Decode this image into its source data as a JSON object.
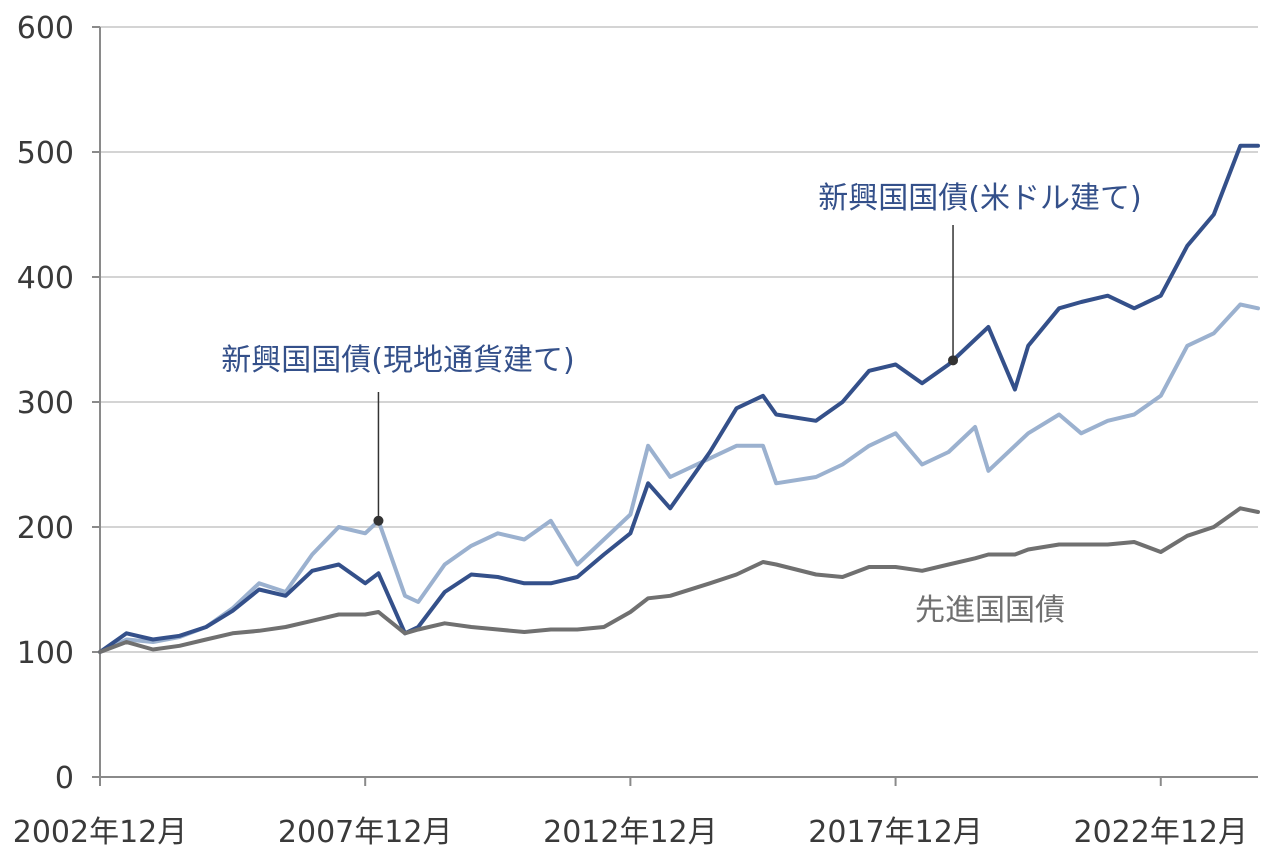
{
  "chart_data": {
    "type": "line",
    "title": "",
    "xlabel": "",
    "ylabel": "",
    "ylim": [
      0,
      600
    ],
    "y_ticks": [
      0,
      100,
      200,
      300,
      400,
      500,
      600
    ],
    "y_tick_labels": [
      "0",
      "100",
      "200",
      "300",
      "400",
      "500",
      "600"
    ],
    "x_range": [
      "2002-12",
      "2024-10"
    ],
    "x_ticks": [
      "2002-12",
      "2007-12",
      "2012-12",
      "2017-12",
      "2022-12"
    ],
    "x_tick_labels": [
      "2002年12月",
      "2007年12月",
      "2012年12月",
      "2017年12月",
      "2022年12月"
    ],
    "grid": "horizontal",
    "legend": "none",
    "series": [
      {
        "name": "新興国国債(現地通貨建て)",
        "color": "#9bb1cf",
        "points": [
          [
            "2002-12",
            100
          ],
          [
            "2003-06",
            110
          ],
          [
            "2003-12",
            108
          ],
          [
            "2004-06",
            112
          ],
          [
            "2004-12",
            120
          ],
          [
            "2005-06",
            135
          ],
          [
            "2005-12",
            155
          ],
          [
            "2006-06",
            148
          ],
          [
            "2006-12",
            178
          ],
          [
            "2007-06",
            200
          ],
          [
            "2007-12",
            195
          ],
          [
            "2008-03",
            205
          ],
          [
            "2008-09",
            145
          ],
          [
            "2008-12",
            140
          ],
          [
            "2009-06",
            170
          ],
          [
            "2009-12",
            185
          ],
          [
            "2010-06",
            195
          ],
          [
            "2010-12",
            190
          ],
          [
            "2011-06",
            205
          ],
          [
            "2011-12",
            170
          ],
          [
            "2012-06",
            190
          ],
          [
            "2012-12",
            210
          ],
          [
            "2013-04",
            265
          ],
          [
            "2013-09",
            240
          ],
          [
            "2014-06",
            255
          ],
          [
            "2014-12",
            265
          ],
          [
            "2015-06",
            265
          ],
          [
            "2015-09",
            235
          ],
          [
            "2016-06",
            240
          ],
          [
            "2016-12",
            250
          ],
          [
            "2017-06",
            265
          ],
          [
            "2017-12",
            275
          ],
          [
            "2018-06",
            250
          ],
          [
            "2018-12",
            260
          ],
          [
            "2019-06",
            280
          ],
          [
            "2019-09",
            245
          ],
          [
            "2020-03",
            265
          ],
          [
            "2020-06",
            275
          ],
          [
            "2021-01",
            290
          ],
          [
            "2021-06",
            275
          ],
          [
            "2021-12",
            285
          ],
          [
            "2022-06",
            290
          ],
          [
            "2022-12",
            305
          ],
          [
            "2023-06",
            345
          ],
          [
            "2023-12",
            355
          ],
          [
            "2024-06",
            378
          ],
          [
            "2024-10",
            375
          ]
        ]
      },
      {
        "name": "新興国国債(米ドル建て)",
        "color": "#34508a",
        "points": [
          [
            "2002-12",
            100
          ],
          [
            "2003-06",
            115
          ],
          [
            "2003-12",
            110
          ],
          [
            "2004-06",
            113
          ],
          [
            "2004-12",
            120
          ],
          [
            "2005-06",
            133
          ],
          [
            "2005-12",
            150
          ],
          [
            "2006-06",
            145
          ],
          [
            "2006-12",
            165
          ],
          [
            "2007-06",
            170
          ],
          [
            "2007-12",
            155
          ],
          [
            "2008-03",
            163
          ],
          [
            "2008-09",
            115
          ],
          [
            "2008-12",
            120
          ],
          [
            "2009-06",
            148
          ],
          [
            "2009-12",
            162
          ],
          [
            "2010-06",
            160
          ],
          [
            "2010-12",
            155
          ],
          [
            "2011-06",
            155
          ],
          [
            "2011-12",
            160
          ],
          [
            "2012-06",
            178
          ],
          [
            "2012-12",
            195
          ],
          [
            "2013-04",
            235
          ],
          [
            "2013-09",
            215
          ],
          [
            "2014-06",
            260
          ],
          [
            "2014-12",
            295
          ],
          [
            "2015-06",
            305
          ],
          [
            "2015-09",
            290
          ],
          [
            "2016-06",
            285
          ],
          [
            "2016-12",
            300
          ],
          [
            "2017-06",
            325
          ],
          [
            "2017-12",
            330
          ],
          [
            "2018-06",
            315
          ],
          [
            "2018-12",
            330
          ],
          [
            "2019-06",
            350
          ],
          [
            "2019-09",
            360
          ],
          [
            "2020-03",
            310
          ],
          [
            "2020-06",
            345
          ],
          [
            "2021-01",
            375
          ],
          [
            "2021-06",
            380
          ],
          [
            "2021-12",
            385
          ],
          [
            "2022-06",
            375
          ],
          [
            "2022-12",
            385
          ],
          [
            "2023-06",
            425
          ],
          [
            "2023-12",
            450
          ],
          [
            "2024-06",
            505
          ],
          [
            "2024-10",
            505
          ]
        ]
      },
      {
        "name": "先進国国債",
        "color": "#707070",
        "points": [
          [
            "2002-12",
            100
          ],
          [
            "2003-06",
            108
          ],
          [
            "2003-12",
            102
          ],
          [
            "2004-06",
            105
          ],
          [
            "2004-12",
            110
          ],
          [
            "2005-06",
            115
          ],
          [
            "2005-12",
            117
          ],
          [
            "2006-06",
            120
          ],
          [
            "2006-12",
            125
          ],
          [
            "2007-06",
            130
          ],
          [
            "2007-12",
            130
          ],
          [
            "2008-03",
            132
          ],
          [
            "2008-09",
            115
          ],
          [
            "2008-12",
            118
          ],
          [
            "2009-06",
            123
          ],
          [
            "2009-12",
            120
          ],
          [
            "2010-06",
            118
          ],
          [
            "2010-12",
            116
          ],
          [
            "2011-06",
            118
          ],
          [
            "2011-12",
            118
          ],
          [
            "2012-06",
            120
          ],
          [
            "2012-12",
            132
          ],
          [
            "2013-04",
            143
          ],
          [
            "2013-09",
            145
          ],
          [
            "2014-06",
            155
          ],
          [
            "2014-12",
            162
          ],
          [
            "2015-06",
            172
          ],
          [
            "2015-09",
            170
          ],
          [
            "2016-06",
            162
          ],
          [
            "2016-12",
            160
          ],
          [
            "2017-06",
            168
          ],
          [
            "2017-12",
            168
          ],
          [
            "2018-06",
            165
          ],
          [
            "2018-12",
            170
          ],
          [
            "2019-06",
            175
          ],
          [
            "2019-09",
            178
          ],
          [
            "2020-03",
            178
          ],
          [
            "2020-06",
            182
          ],
          [
            "2021-01",
            186
          ],
          [
            "2021-06",
            186
          ],
          [
            "2021-12",
            186
          ],
          [
            "2022-06",
            188
          ],
          [
            "2022-12",
            180
          ],
          [
            "2023-06",
            193
          ],
          [
            "2023-12",
            200
          ],
          [
            "2024-06",
            215
          ],
          [
            "2024-10",
            212
          ]
        ]
      }
    ],
    "annotations": [
      {
        "text": "新興国国債(米ドル建て)",
        "series": 1,
        "at": "2019-01",
        "color": "#34508a"
      },
      {
        "text": "新興国国債(現地通貨建て)",
        "series": 0,
        "at": "2008-03",
        "color": "#34508a"
      },
      {
        "text": "先進国国債",
        "series": 2,
        "color": "#707070"
      }
    ]
  }
}
